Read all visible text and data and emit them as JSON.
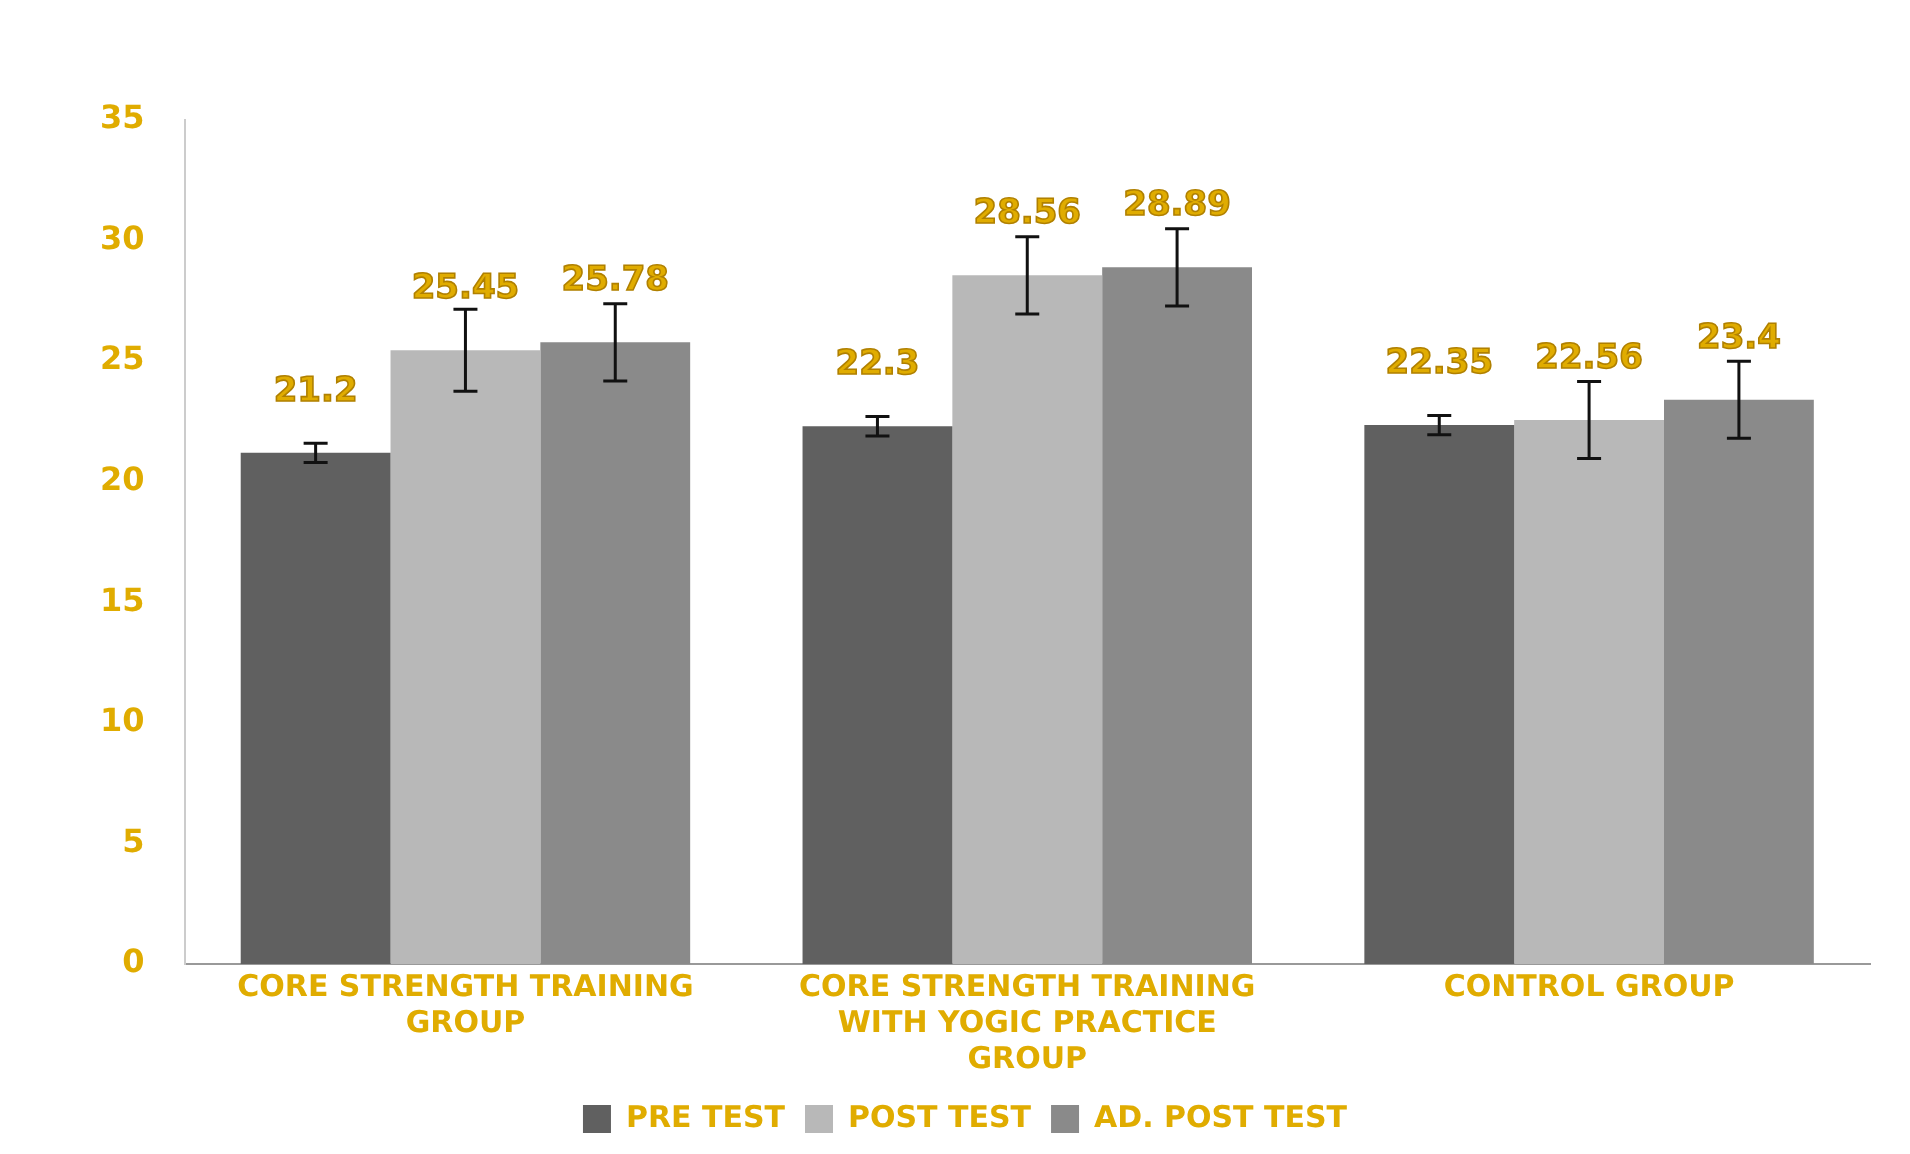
{
  "chart_data": {
    "type": "bar",
    "categories": [
      "CORE STRENGTH TRAINING GROUP",
      "CORE STRENGTH TRAINING WITH YOGIC PRACTICE GROUP",
      "CONTROL GROUP"
    ],
    "series": [
      {
        "name": "PRE TEST",
        "color": "#606060",
        "values": [
          21.2,
          22.3,
          22.35
        ],
        "errors": [
          0.4,
          0.4,
          0.4
        ]
      },
      {
        "name": "POST TEST",
        "color": "#b8b8b8",
        "values": [
          25.45,
          28.56,
          22.56
        ],
        "errors": [
          1.7,
          1.6,
          1.6
        ]
      },
      {
        "name": "AD. POST TEST",
        "color": "#8a8a8a",
        "values": [
          25.78,
          28.89,
          23.4
        ],
        "errors": [
          1.6,
          1.6,
          1.6
        ]
      }
    ],
    "ylim": [
      0,
      35
    ],
    "yticks": [
      0,
      5,
      10,
      15,
      20,
      25,
      30,
      35
    ],
    "grid": false,
    "legend": "bottom",
    "data_labels": true
  }
}
